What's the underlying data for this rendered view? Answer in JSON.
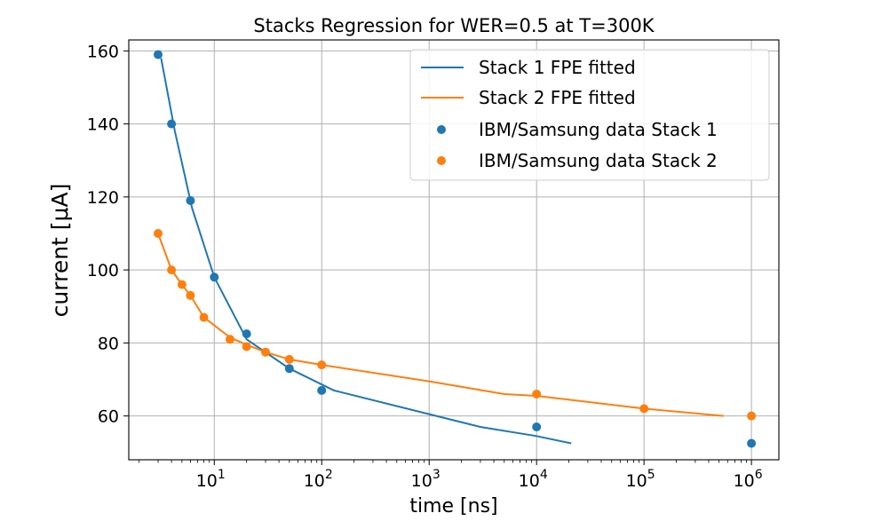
{
  "chart_data": {
    "type": "line",
    "title": "Stacks Regression for WER=0.5 at T=300K",
    "xlabel": "time [ns]",
    "ylabel": "current [μA]",
    "xscale": "log",
    "xlim": [
      1.6,
      1800000
    ],
    "ylim": [
      48,
      163
    ],
    "x_ticks": [
      {
        "value": 10,
        "base": "10",
        "exp": "1"
      },
      {
        "value": 100,
        "base": "10",
        "exp": "2"
      },
      {
        "value": 1000,
        "base": "10",
        "exp": "3"
      },
      {
        "value": 10000,
        "base": "10",
        "exp": "4"
      },
      {
        "value": 100000,
        "base": "10",
        "exp": "5"
      },
      {
        "value": 1000000,
        "base": "10",
        "exp": "6"
      }
    ],
    "y_ticks": [
      60,
      80,
      100,
      120,
      140,
      160
    ],
    "grid": true,
    "legend_position": "top-right",
    "series": [
      {
        "name": "Stack 1 FPE fitted",
        "kind": "line",
        "color": "#1f77b4",
        "x": [
          3.2,
          4.3,
          6.2,
          10,
          20,
          50,
          130,
          1000,
          3000,
          10000,
          21000
        ],
        "y": [
          158,
          138,
          117,
          98,
          81,
          73,
          67,
          60.5,
          57,
          54.5,
          52.5
        ]
      },
      {
        "name": "Stack 2 FPE fitted",
        "kind": "line",
        "color": "#ff7f0e",
        "x": [
          3,
          4,
          5,
          6,
          8,
          14,
          20,
          30,
          50,
          100,
          1000,
          5000,
          10000,
          100000,
          550000
        ],
        "y": [
          110,
          100,
          96,
          93,
          87,
          81.5,
          79.5,
          77.5,
          75.5,
          74,
          69.5,
          66,
          65.5,
          62,
          60
        ]
      },
      {
        "name": "IBM/Samsung data Stack 1",
        "kind": "scatter",
        "color": "#1f77b4",
        "x": [
          3,
          4,
          6,
          10,
          20,
          50,
          100,
          10000,
          1000000
        ],
        "y": [
          159,
          140,
          119,
          98,
          82.5,
          73,
          67,
          57,
          52.5
        ]
      },
      {
        "name": "IBM/Samsung data Stack 2",
        "kind": "scatter",
        "color": "#ff7f0e",
        "x": [
          3,
          4,
          5,
          6,
          8,
          14,
          20,
          30,
          50,
          100,
          10000,
          100000,
          1000000
        ],
        "y": [
          110,
          100,
          96,
          93,
          87,
          81,
          79,
          77.5,
          75.5,
          74,
          66,
          62,
          60
        ]
      }
    ]
  }
}
